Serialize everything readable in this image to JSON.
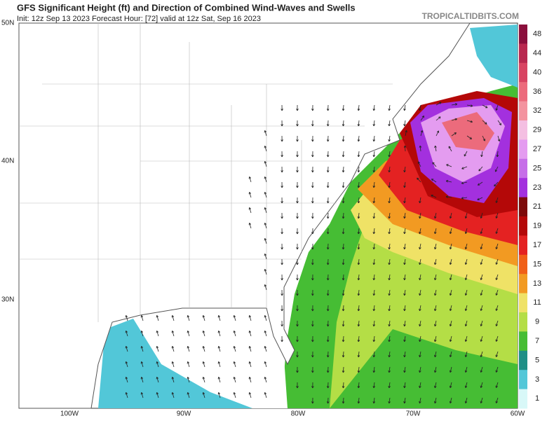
{
  "header": {
    "title": "GFS Significant Height (ft) and Direction of Combined Wind-Waves and Swells",
    "subtitle": "Init: 12z Sep 13 2023   Forecast Hour: [72]   valid at 12z Sat, Sep 16 2023",
    "watermark": "TROPICALTIDBITS.COM"
  },
  "map": {
    "lat_labels": [
      "50N",
      "40N",
      "30N"
    ],
    "lon_labels": [
      "100W",
      "90W",
      "80W",
      "70W",
      "60W"
    ]
  },
  "colorbar": {
    "labels": [
      48,
      44,
      40,
      36,
      32,
      29,
      27,
      25,
      23,
      21,
      19,
      17,
      15,
      13,
      11,
      9,
      7,
      5,
      3,
      1
    ],
    "colors": [
      "#8a0f3c",
      "#b8284f",
      "#d84462",
      "#ec6b7c",
      "#f3939f",
      "#f4bfe2",
      "#e49cf0",
      "#c66ee8",
      "#a330de",
      "#7d0a0a",
      "#b40808",
      "#e42222",
      "#f06018",
      "#f29a22",
      "#efe266",
      "#b4de46",
      "#46bd34",
      "#1f8f86",
      "#52c7d8",
      "#d8f8f8"
    ]
  }
}
